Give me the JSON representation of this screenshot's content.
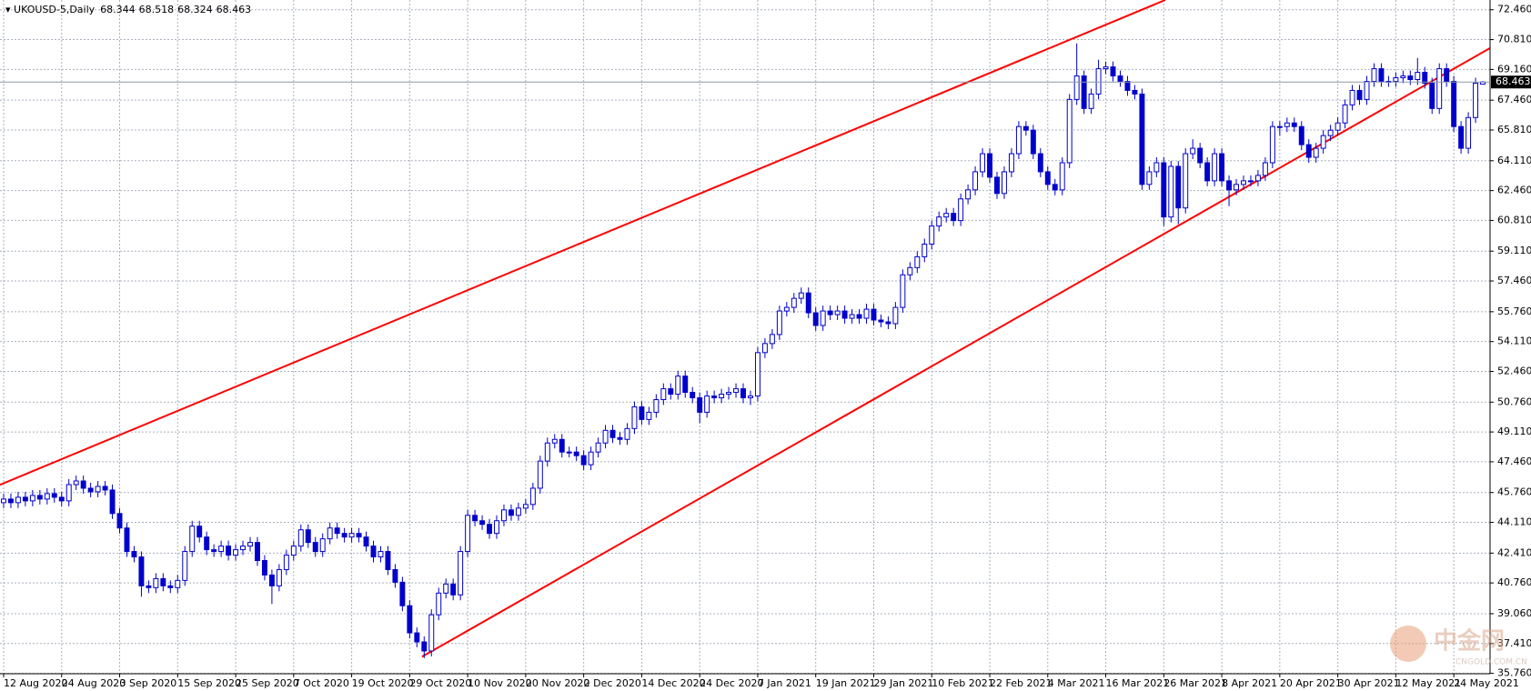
{
  "chart_data": {
    "type": "candlestick",
    "title": "UKOUSD-5,Daily",
    "candle_color": "#0000cc",
    "grid": true,
    "ylim": [
      35.74,
      73.0
    ],
    "yticks": [
      {
        "value": 72.46,
        "label": "72.460"
      },
      {
        "value": 70.81,
        "label": "70.810"
      },
      {
        "value": 69.16,
        "label": "69.160"
      },
      {
        "value": 67.46,
        "label": "67.460"
      },
      {
        "value": 65.81,
        "label": "65.810"
      },
      {
        "value": 64.11,
        "label": "64.110"
      },
      {
        "value": 62.46,
        "label": "62.460"
      },
      {
        "value": 60.81,
        "label": "60.810"
      },
      {
        "value": 59.11,
        "label": "59.110"
      },
      {
        "value": 57.46,
        "label": "57.460"
      },
      {
        "value": 55.76,
        "label": "55.760"
      },
      {
        "value": 54.11,
        "label": "54.110"
      },
      {
        "value": 52.46,
        "label": "52.460"
      },
      {
        "value": 50.76,
        "label": "50.760"
      },
      {
        "value": 49.11,
        "label": "49.110"
      },
      {
        "value": 47.46,
        "label": "47.460"
      },
      {
        "value": 45.76,
        "label": "45.760"
      },
      {
        "value": 44.11,
        "label": "44.110"
      },
      {
        "value": 42.41,
        "label": "42.410"
      },
      {
        "value": 40.76,
        "label": "40.760"
      },
      {
        "value": 39.06,
        "label": "39.060"
      },
      {
        "value": 37.41,
        "label": "37.410"
      },
      {
        "value": 35.76,
        "label": "35.760"
      }
    ],
    "categories": [
      "12 Aug 2020",
      null,
      null,
      null,
      null,
      null,
      null,
      null,
      "24 Aug 2020",
      null,
      null,
      null,
      null,
      null,
      null,
      null,
      "3 Sep 2020",
      null,
      null,
      null,
      null,
      null,
      null,
      null,
      "15 Sep 2020",
      null,
      null,
      null,
      null,
      null,
      null,
      null,
      "25 Sep 2020",
      null,
      null,
      null,
      null,
      null,
      null,
      null,
      "7 Oct 2020",
      null,
      null,
      null,
      null,
      null,
      null,
      null,
      "19 Oct 2020",
      null,
      null,
      null,
      null,
      null,
      null,
      null,
      "29 Oct 2020",
      null,
      null,
      null,
      null,
      null,
      null,
      null,
      "10 Nov 2020",
      null,
      null,
      null,
      null,
      null,
      null,
      null,
      "20 Nov 2020",
      null,
      null,
      null,
      null,
      null,
      null,
      null,
      "2 Dec 2020",
      null,
      null,
      null,
      null,
      null,
      null,
      null,
      "14 Dec 2020",
      null,
      null,
      null,
      null,
      null,
      null,
      null,
      "24 Dec 2020",
      null,
      null,
      null,
      null,
      null,
      null,
      null,
      "7 Jan 2021",
      null,
      null,
      null,
      null,
      null,
      null,
      null,
      "19 Jan 2021",
      null,
      null,
      null,
      null,
      null,
      null,
      null,
      "29 Jan 2021",
      null,
      null,
      null,
      null,
      null,
      null,
      null,
      "10 Feb 2021",
      null,
      null,
      null,
      null,
      null,
      null,
      null,
      "22 Feb 2021",
      null,
      null,
      null,
      null,
      null,
      null,
      null,
      "4 Mar 2021",
      null,
      null,
      null,
      null,
      null,
      null,
      null,
      "16 Mar 2021",
      null,
      null,
      null,
      null,
      null,
      null,
      null,
      "26 Mar 2021",
      null,
      null,
      null,
      null,
      null,
      null,
      null,
      "8 Apr 2021",
      null,
      null,
      null,
      null,
      null,
      null,
      null,
      "20 Apr 2021",
      null,
      null,
      null,
      null,
      null,
      null,
      null,
      "30 Apr 2021",
      null,
      null,
      null,
      null,
      null,
      null,
      null,
      "12 May 2021",
      null,
      null,
      null,
      null,
      null,
      null,
      null,
      "24 May 2021",
      null,
      null,
      null,
      null
    ],
    "ohlc": [
      [
        45.2,
        45.7,
        44.9,
        45.4
      ],
      [
        45.4,
        45.7,
        44.9,
        45.2
      ],
      [
        45.2,
        45.8,
        44.9,
        45.5
      ],
      [
        45.5,
        45.8,
        45.0,
        45.3
      ],
      [
        45.3,
        45.9,
        45.0,
        45.6
      ],
      [
        45.6,
        45.9,
        45.1,
        45.4
      ],
      [
        45.4,
        46.0,
        45.1,
        45.7
      ],
      [
        45.7,
        46.0,
        45.2,
        45.5
      ],
      [
        45.5,
        45.8,
        45.0,
        45.3
      ],
      [
        45.3,
        46.5,
        45.0,
        46.2
      ],
      [
        46.2,
        46.7,
        45.9,
        46.4
      ],
      [
        46.4,
        46.7,
        45.7,
        46.0
      ],
      [
        46.0,
        46.3,
        45.5,
        45.8
      ],
      [
        45.8,
        46.4,
        45.5,
        46.1
      ],
      [
        46.1,
        46.4,
        45.6,
        45.9
      ],
      [
        45.9,
        46.2,
        44.3,
        44.6
      ],
      [
        44.6,
        44.9,
        43.5,
        43.8
      ],
      [
        43.8,
        44.1,
        42.2,
        42.5
      ],
      [
        42.5,
        42.8,
        41.9,
        42.2
      ],
      [
        42.2,
        42.5,
        40.0,
        40.6
      ],
      [
        40.6,
        40.9,
        40.2,
        40.5
      ],
      [
        40.5,
        41.3,
        40.2,
        41.0
      ],
      [
        41.0,
        41.3,
        40.3,
        40.6
      ],
      [
        40.6,
        40.9,
        40.2,
        40.5
      ],
      [
        40.5,
        41.2,
        40.2,
        40.9
      ],
      [
        40.9,
        42.8,
        40.6,
        42.5
      ],
      [
        42.5,
        44.2,
        42.2,
        43.9
      ],
      [
        43.9,
        44.2,
        43.0,
        43.3
      ],
      [
        43.3,
        43.6,
        42.3,
        42.6
      ],
      [
        42.6,
        42.9,
        42.2,
        42.5
      ],
      [
        42.5,
        43.1,
        42.2,
        42.8
      ],
      [
        42.8,
        43.1,
        42.0,
        42.3
      ],
      [
        42.3,
        42.9,
        42.0,
        42.6
      ],
      [
        42.6,
        43.1,
        42.3,
        42.8
      ],
      [
        42.8,
        43.3,
        42.5,
        43.0
      ],
      [
        43.0,
        43.3,
        41.7,
        42.0
      ],
      [
        42.0,
        42.3,
        40.9,
        41.2
      ],
      [
        41.2,
        41.5,
        39.6,
        40.6
      ],
      [
        40.6,
        41.8,
        40.3,
        41.5
      ],
      [
        41.5,
        42.6,
        41.2,
        42.3
      ],
      [
        42.3,
        43.1,
        42.0,
        42.8
      ],
      [
        42.8,
        44.0,
        42.5,
        43.7
      ],
      [
        43.7,
        44.0,
        42.7,
        43.0
      ],
      [
        43.0,
        43.3,
        42.2,
        42.5
      ],
      [
        42.5,
        43.5,
        42.2,
        43.2
      ],
      [
        43.2,
        44.1,
        42.9,
        43.8
      ],
      [
        43.8,
        44.1,
        43.2,
        43.5
      ],
      [
        43.5,
        43.8,
        43.0,
        43.3
      ],
      [
        43.3,
        43.8,
        43.0,
        43.5
      ],
      [
        43.5,
        43.8,
        43.0,
        43.3
      ],
      [
        43.3,
        43.6,
        42.5,
        42.8
      ],
      [
        42.8,
        43.1,
        41.9,
        42.2
      ],
      [
        42.2,
        42.8,
        41.9,
        42.5
      ],
      [
        42.5,
        42.8,
        41.2,
        41.5
      ],
      [
        41.5,
        41.8,
        40.5,
        40.8
      ],
      [
        40.8,
        41.1,
        39.2,
        39.5
      ],
      [
        39.5,
        39.8,
        37.7,
        38.0
      ],
      [
        38.0,
        38.3,
        37.2,
        37.5
      ],
      [
        37.5,
        37.8,
        36.6,
        37.0
      ],
      [
        37.0,
        39.3,
        36.7,
        39.0
      ],
      [
        39.0,
        40.5,
        38.7,
        40.2
      ],
      [
        40.2,
        41.0,
        39.9,
        40.7
      ],
      [
        40.7,
        41.0,
        39.8,
        40.1
      ],
      [
        40.1,
        42.8,
        39.8,
        42.5
      ],
      [
        42.5,
        44.8,
        42.2,
        44.5
      ],
      [
        44.5,
        44.8,
        43.9,
        44.2
      ],
      [
        44.2,
        44.5,
        43.7,
        44.0
      ],
      [
        44.0,
        44.3,
        43.2,
        43.5
      ],
      [
        43.5,
        44.5,
        43.2,
        44.2
      ],
      [
        44.2,
        45.1,
        43.9,
        44.8
      ],
      [
        44.8,
        45.1,
        44.2,
        44.5
      ],
      [
        44.5,
        45.2,
        44.2,
        44.9
      ],
      [
        44.9,
        45.4,
        44.6,
        45.1
      ],
      [
        45.1,
        46.3,
        44.8,
        46.0
      ],
      [
        46.0,
        47.8,
        45.7,
        47.5
      ],
      [
        47.5,
        48.8,
        47.2,
        48.5
      ],
      [
        48.5,
        49.0,
        48.2,
        48.7
      ],
      [
        48.7,
        49.0,
        47.7,
        48.0
      ],
      [
        48.0,
        48.3,
        47.7,
        48.0
      ],
      [
        48.0,
        48.3,
        47.5,
        47.8
      ],
      [
        47.8,
        48.1,
        47.0,
        47.3
      ],
      [
        47.3,
        48.3,
        47.0,
        48.0
      ],
      [
        48.0,
        48.8,
        47.7,
        48.5
      ],
      [
        48.5,
        49.5,
        48.2,
        49.2
      ],
      [
        49.2,
        49.5,
        48.5,
        48.8
      ],
      [
        48.8,
        49.1,
        48.4,
        48.7
      ],
      [
        48.7,
        49.6,
        48.4,
        49.3
      ],
      [
        49.3,
        50.8,
        49.0,
        50.5
      ],
      [
        50.5,
        50.8,
        49.5,
        49.8
      ],
      [
        49.8,
        50.5,
        49.5,
        50.2
      ],
      [
        50.2,
        51.2,
        49.9,
        50.9
      ],
      [
        50.9,
        51.8,
        50.6,
        51.5
      ],
      [
        51.5,
        51.8,
        50.9,
        51.2
      ],
      [
        51.2,
        52.5,
        50.9,
        52.2
      ],
      [
        52.2,
        52.5,
        51.0,
        51.3
      ],
      [
        51.3,
        51.6,
        50.7,
        51.0
      ],
      [
        51.0,
        51.3,
        49.6,
        50.2
      ],
      [
        50.2,
        51.4,
        49.9,
        51.1
      ],
      [
        51.1,
        51.4,
        50.7,
        51.0
      ],
      [
        51.0,
        51.5,
        50.7,
        51.2
      ],
      [
        51.2,
        51.6,
        50.9,
        51.3
      ],
      [
        51.3,
        51.8,
        51.0,
        51.5
      ],
      [
        51.5,
        51.8,
        50.7,
        51.0
      ],
      [
        51.0,
        51.4,
        50.6,
        51.1
      ],
      [
        51.1,
        53.8,
        50.8,
        53.5
      ],
      [
        53.5,
        54.3,
        53.2,
        54.0
      ],
      [
        54.0,
        54.8,
        53.7,
        54.5
      ],
      [
        54.5,
        56.1,
        54.2,
        55.8
      ],
      [
        55.8,
        56.3,
        55.5,
        56.0
      ],
      [
        56.0,
        56.8,
        55.7,
        56.5
      ],
      [
        56.5,
        57.1,
        56.2,
        56.8
      ],
      [
        56.8,
        57.1,
        55.4,
        55.7
      ],
      [
        55.7,
        56.0,
        54.7,
        55.0
      ],
      [
        55.0,
        56.1,
        54.7,
        55.8
      ],
      [
        55.8,
        56.1,
        55.3,
        55.6
      ],
      [
        55.6,
        56.1,
        55.3,
        55.8
      ],
      [
        55.8,
        56.1,
        55.1,
        55.4
      ],
      [
        55.4,
        55.9,
        55.1,
        55.6
      ],
      [
        55.6,
        55.9,
        55.1,
        55.4
      ],
      [
        55.4,
        56.2,
        55.1,
        55.9
      ],
      [
        55.9,
        56.2,
        55.0,
        55.3
      ],
      [
        55.3,
        55.6,
        54.9,
        55.2
      ],
      [
        55.2,
        55.5,
        54.8,
        55.1
      ],
      [
        55.1,
        56.3,
        54.8,
        56.0
      ],
      [
        56.0,
        58.1,
        55.7,
        57.8
      ],
      [
        57.8,
        58.5,
        57.5,
        58.2
      ],
      [
        58.2,
        59.1,
        57.9,
        58.8
      ],
      [
        58.8,
        59.8,
        58.5,
        59.5
      ],
      [
        59.5,
        60.8,
        59.2,
        60.5
      ],
      [
        60.5,
        61.3,
        60.2,
        61.0
      ],
      [
        61.0,
        61.5,
        60.7,
        61.2
      ],
      [
        61.2,
        61.5,
        60.5,
        60.8
      ],
      [
        60.8,
        62.3,
        60.5,
        62.0
      ],
      [
        62.0,
        62.8,
        61.7,
        62.5
      ],
      [
        62.5,
        63.8,
        62.2,
        63.5
      ],
      [
        63.5,
        64.8,
        63.2,
        64.5
      ],
      [
        64.5,
        64.8,
        62.9,
        63.2
      ],
      [
        63.2,
        63.5,
        62.0,
        62.3
      ],
      [
        62.3,
        63.8,
        62.0,
        63.5
      ],
      [
        63.5,
        64.8,
        63.2,
        64.5
      ],
      [
        64.5,
        66.3,
        64.2,
        66.0
      ],
      [
        66.0,
        66.3,
        65.5,
        65.8
      ],
      [
        65.8,
        66.1,
        64.2,
        64.5
      ],
      [
        64.5,
        64.8,
        63.2,
        63.5
      ],
      [
        63.5,
        63.8,
        62.5,
        62.8
      ],
      [
        62.8,
        63.1,
        62.2,
        62.5
      ],
      [
        62.5,
        64.3,
        62.2,
        64.0
      ],
      [
        64.0,
        67.8,
        63.7,
        67.5
      ],
      [
        67.5,
        70.6,
        67.2,
        68.8
      ],
      [
        68.8,
        69.1,
        66.7,
        67.0
      ],
      [
        67.0,
        68.1,
        66.7,
        67.8
      ],
      [
        67.8,
        69.7,
        67.5,
        69.2
      ],
      [
        69.2,
        69.6,
        68.9,
        69.3
      ],
      [
        69.3,
        69.6,
        68.5,
        68.8
      ],
      [
        68.8,
        69.1,
        68.2,
        68.5
      ],
      [
        68.5,
        68.8,
        67.7,
        68.0
      ],
      [
        68.0,
        68.3,
        67.5,
        67.8
      ],
      [
        67.8,
        68.1,
        62.5,
        62.8
      ],
      [
        62.8,
        63.8,
        62.5,
        63.5
      ],
      [
        63.5,
        64.3,
        63.2,
        64.0
      ],
      [
        64.0,
        64.3,
        60.5,
        61.0
      ],
      [
        61.0,
        64.1,
        60.7,
        63.8
      ],
      [
        63.8,
        64.1,
        60.6,
        61.5
      ],
      [
        61.5,
        64.8,
        61.2,
        64.5
      ],
      [
        64.5,
        65.3,
        64.2,
        64.8
      ],
      [
        64.8,
        65.1,
        63.7,
        64.0
      ],
      [
        64.0,
        64.3,
        62.7,
        63.0
      ],
      [
        63.0,
        64.8,
        62.7,
        64.5
      ],
      [
        64.5,
        64.8,
        62.7,
        63.0
      ],
      [
        63.0,
        63.3,
        61.6,
        62.5
      ],
      [
        62.5,
        63.1,
        62.2,
        62.8
      ],
      [
        62.8,
        63.3,
        62.5,
        63.0
      ],
      [
        63.0,
        63.3,
        62.7,
        63.0
      ],
      [
        63.0,
        63.6,
        62.7,
        63.3
      ],
      [
        63.3,
        64.3,
        63.0,
        64.0
      ],
      [
        64.0,
        66.3,
        63.7,
        66.0
      ],
      [
        66.0,
        66.3,
        65.5,
        66.0
      ],
      [
        66.0,
        66.5,
        65.7,
        66.2
      ],
      [
        66.2,
        66.5,
        65.7,
        66.0
      ],
      [
        66.0,
        66.3,
        64.7,
        65.0
      ],
      [
        65.0,
        65.3,
        64.0,
        64.3
      ],
      [
        64.3,
        65.1,
        64.0,
        64.8
      ],
      [
        64.8,
        65.8,
        64.5,
        65.5
      ],
      [
        65.5,
        66.1,
        65.2,
        65.8
      ],
      [
        65.8,
        66.5,
        65.5,
        66.2
      ],
      [
        66.2,
        67.5,
        65.9,
        67.2
      ],
      [
        67.2,
        68.3,
        66.9,
        68.0
      ],
      [
        68.0,
        68.3,
        67.2,
        67.5
      ],
      [
        67.5,
        68.8,
        67.2,
        68.5
      ],
      [
        68.5,
        69.5,
        68.2,
        69.2
      ],
      [
        69.2,
        69.5,
        68.2,
        68.5
      ],
      [
        68.5,
        68.8,
        68.2,
        68.5
      ],
      [
        68.5,
        69.0,
        68.2,
        68.7
      ],
      [
        68.7,
        69.1,
        68.4,
        68.8
      ],
      [
        68.8,
        69.1,
        68.3,
        68.6
      ],
      [
        68.6,
        69.8,
        68.3,
        69.0
      ],
      [
        69.0,
        69.3,
        68.1,
        68.4
      ],
      [
        68.4,
        68.7,
        66.7,
        67.0
      ],
      [
        67.0,
        69.5,
        66.7,
        69.2
      ],
      [
        69.2,
        69.5,
        68.2,
        68.5
      ],
      [
        68.5,
        68.8,
        65.7,
        66.0
      ],
      [
        66.0,
        66.3,
        64.5,
        64.8
      ],
      [
        64.8,
        66.8,
        64.5,
        66.5
      ],
      [
        66.5,
        68.7,
        66.2,
        68.4
      ],
      [
        68.344,
        68.518,
        68.324,
        68.463
      ]
    ],
    "trendlines": [
      {
        "color": "#ff0000",
        "x": [
          -0.5,
          160.2
        ],
        "y": [
          46.19,
          73.0
        ]
      },
      {
        "color": "#ff0000",
        "x": [
          57.7,
          205.3
        ],
        "y": [
          36.68,
          70.41
        ]
      }
    ],
    "watermark": {
      "text": "中金网",
      "url": "CNGOLD.COM.CN"
    }
  }
}
